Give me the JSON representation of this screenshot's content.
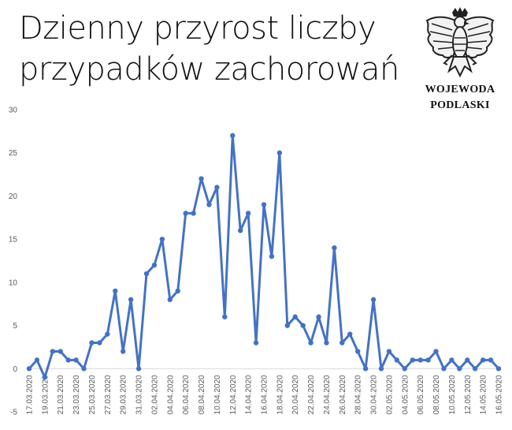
{
  "header": {
    "title_line1": "Dzienny przyrost liczby",
    "title_line2": "przypadków zachorowań"
  },
  "emblem": {
    "line1": "WOJEWODA",
    "line2": "PODLASKI"
  },
  "chart_data": {
    "type": "line",
    "title": "",
    "xlabel": "",
    "ylabel": "",
    "ylim": [
      -5,
      30
    ],
    "yticks": [
      -5,
      0,
      5,
      10,
      15,
      20,
      25,
      30
    ],
    "grid": false,
    "x_tick_labels": [
      "17.03.2020",
      "19.03.2020",
      "21.03.2020",
      "23.03.2020",
      "25.03.2020",
      "27.03.2020",
      "29.03.2020",
      "31.03.2020",
      "02.04.2020",
      "04.04.2020",
      "06.04.2020",
      "08.04.2020",
      "10.04.2020",
      "12.04.2020",
      "14.04.2020",
      "16.04.2020",
      "18.04.2020",
      "20.04.2020",
      "22.04.2020",
      "24.04.2020",
      "26.04.2020",
      "28.04.2020",
      "30.04.2020",
      "02.05.2020",
      "04.05.2020",
      "06.05.2020",
      "08.05.2020",
      "10.05.2020",
      "12.05.2020",
      "14.05.2020",
      "16.05.2020"
    ],
    "series": [
      {
        "color": "#4472c4",
        "values": [
          0,
          1,
          -1,
          2,
          2,
          1,
          1,
          0,
          3,
          3,
          4,
          9,
          2,
          8,
          0,
          11,
          12,
          15,
          8,
          9,
          18,
          18,
          22,
          19,
          21,
          6,
          27,
          16,
          18,
          3,
          19,
          13,
          25,
          5,
          6,
          5,
          3,
          6,
          3,
          14,
          3,
          4,
          2,
          0,
          8,
          0,
          2,
          1,
          0,
          1,
          1,
          1,
          2,
          0,
          1,
          0,
          1,
          0,
          1,
          1,
          0
        ]
      }
    ]
  }
}
